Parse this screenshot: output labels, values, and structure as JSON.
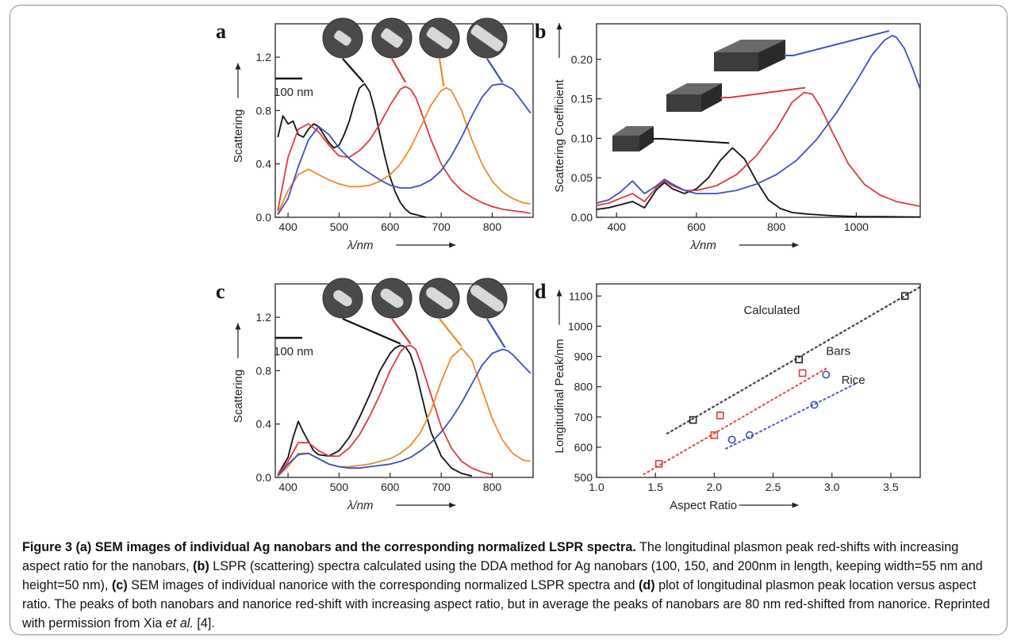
{
  "caption": {
    "title": "Figure 3 (a) SEM images of individual Ag nanobars and the corresponding normalized LSPR spectra.",
    "text1": " The longitudinal plasmon peak red-shifts with increasing aspect ratio for the nanobars, ",
    "b_label": "(b)",
    "text2": " LSPR (scattering) spectra calculated using the DDA method for Ag nanobars (100, 150, and 200nm in length, keeping width=55 nm and height=50 nm), ",
    "c_label": "(c)",
    "text3": " SEM images of individual nanorice with the corresponding normalized LSPR spectra and ",
    "d_label": "(d)",
    "text4": " plot of longitudinal plasmon peak location versus aspect ratio. The peaks of both nanobars and nanorice red-shift with increasing aspect ratio, but in average the peaks of nanobars are 80 nm red-shifted from nanorice. Reprinted with permission from Xia ",
    "etal": "et al.",
    "text5": " [4]."
  },
  "chart_data": [
    {
      "panel": "a",
      "type": "line",
      "xlabel": "λ/nm",
      "ylabel": "Scattering",
      "xlim": [
        375,
        880
      ],
      "ylim": [
        0,
        1.45
      ],
      "xticks": [
        "400",
        "500",
        "600",
        "700",
        "800"
      ],
      "yticks": [
        "0.0",
        "0.4",
        "0.8",
        "1.2"
      ],
      "scale_bar_label": "100 nm",
      "series": [
        {
          "color": "#111111",
          "x": [
            380,
            390,
            400,
            410,
            420,
            430,
            440,
            450,
            460,
            470,
            480,
            490,
            500,
            510,
            520,
            530,
            540,
            550,
            560,
            570,
            580,
            590,
            600,
            610,
            620,
            630,
            640,
            650,
            660,
            670
          ],
          "y": [
            0.6,
            0.76,
            0.7,
            0.72,
            0.62,
            0.6,
            0.66,
            0.7,
            0.68,
            0.62,
            0.56,
            0.52,
            0.54,
            0.62,
            0.72,
            0.86,
            0.97,
            1.0,
            0.94,
            0.8,
            0.62,
            0.45,
            0.3,
            0.19,
            0.11,
            0.06,
            0.03,
            0.02,
            0.01,
            0.0
          ]
        },
        {
          "color": "#e03a3a",
          "x": [
            380,
            400,
            420,
            440,
            460,
            480,
            500,
            520,
            540,
            560,
            580,
            600,
            620,
            630,
            640,
            650,
            660,
            680,
            700,
            720,
            740,
            760,
            780,
            800,
            820,
            840,
            860,
            875
          ],
          "y": [
            0.05,
            0.45,
            0.66,
            0.7,
            0.64,
            0.54,
            0.46,
            0.45,
            0.5,
            0.58,
            0.7,
            0.84,
            0.96,
            0.98,
            0.96,
            0.9,
            0.8,
            0.58,
            0.4,
            0.28,
            0.2,
            0.15,
            0.11,
            0.08,
            0.06,
            0.05,
            0.04,
            0.03
          ]
        },
        {
          "color": "#f08a28",
          "x": [
            380,
            400,
            420,
            440,
            460,
            480,
            500,
            520,
            540,
            560,
            580,
            600,
            620,
            640,
            660,
            680,
            700,
            710,
            720,
            740,
            760,
            780,
            800,
            820,
            840,
            860,
            875
          ],
          "y": [
            0.03,
            0.2,
            0.32,
            0.36,
            0.32,
            0.28,
            0.25,
            0.23,
            0.23,
            0.24,
            0.27,
            0.32,
            0.4,
            0.52,
            0.68,
            0.84,
            0.95,
            0.97,
            0.95,
            0.8,
            0.58,
            0.4,
            0.27,
            0.19,
            0.14,
            0.11,
            0.1
          ]
        },
        {
          "color": "#3a50c0",
          "x": [
            380,
            400,
            420,
            440,
            460,
            480,
            500,
            520,
            540,
            560,
            580,
            600,
            620,
            640,
            660,
            680,
            700,
            720,
            740,
            760,
            780,
            800,
            820,
            840,
            860,
            875
          ],
          "y": [
            0.02,
            0.14,
            0.38,
            0.58,
            0.68,
            0.62,
            0.52,
            0.44,
            0.38,
            0.33,
            0.28,
            0.24,
            0.22,
            0.22,
            0.24,
            0.28,
            0.35,
            0.46,
            0.6,
            0.76,
            0.9,
            0.99,
            1.0,
            0.96,
            0.86,
            0.78
          ]
        }
      ]
    },
    {
      "panel": "b",
      "type": "line",
      "xlabel": "λ/nm",
      "ylabel": "Scattering Coefficient",
      "xlim": [
        350,
        1160
      ],
      "ylim": [
        0,
        0.245
      ],
      "xticks": [
        "400",
        "600",
        "800",
        "1000"
      ],
      "yticks": [
        "0.00",
        "0.05",
        "0.10",
        "0.15",
        "0.20"
      ],
      "series": [
        {
          "color": "#111111",
          "x": [
            350,
            380,
            410,
            440,
            470,
            500,
            520,
            540,
            570,
            600,
            630,
            660,
            690,
            720,
            750,
            780,
            810,
            840,
            880,
            940,
            1000,
            1060,
            1120,
            1160
          ],
          "y": [
            0.01,
            0.012,
            0.016,
            0.02,
            0.012,
            0.035,
            0.044,
            0.036,
            0.03,
            0.036,
            0.05,
            0.072,
            0.088,
            0.074,
            0.046,
            0.022,
            0.011,
            0.006,
            0.004,
            0.002,
            0.001,
            0.0008,
            0.0005,
            0.0004
          ]
        },
        {
          "color": "#e03a3a",
          "x": [
            350,
            380,
            410,
            440,
            470,
            500,
            520,
            540,
            570,
            600,
            650,
            700,
            750,
            800,
            840,
            870,
            890,
            910,
            940,
            980,
            1020,
            1060,
            1100,
            1140,
            1160
          ],
          "y": [
            0.015,
            0.018,
            0.024,
            0.03,
            0.02,
            0.038,
            0.046,
            0.04,
            0.034,
            0.034,
            0.04,
            0.054,
            0.078,
            0.112,
            0.146,
            0.158,
            0.156,
            0.14,
            0.108,
            0.068,
            0.042,
            0.028,
            0.02,
            0.016,
            0.014
          ]
        },
        {
          "color": "#3a50c0",
          "x": [
            350,
            380,
            410,
            440,
            470,
            500,
            520,
            540,
            570,
            600,
            650,
            700,
            750,
            800,
            850,
            900,
            950,
            1000,
            1040,
            1070,
            1090,
            1100,
            1120,
            1140,
            1160
          ],
          "y": [
            0.018,
            0.022,
            0.032,
            0.046,
            0.03,
            0.04,
            0.048,
            0.042,
            0.034,
            0.03,
            0.03,
            0.034,
            0.042,
            0.054,
            0.072,
            0.098,
            0.132,
            0.172,
            0.206,
            0.224,
            0.23,
            0.228,
            0.214,
            0.19,
            0.162
          ]
        }
      ]
    },
    {
      "panel": "c",
      "type": "line",
      "xlabel": "λ/nm",
      "ylabel": "Scattering",
      "xlim": [
        375,
        880
      ],
      "ylim": [
        0,
        1.45
      ],
      "xticks": [
        "400",
        "500",
        "600",
        "700",
        "800"
      ],
      "yticks": [
        "0.0",
        "0.4",
        "0.8",
        "1.2"
      ],
      "scale_bar_label": "100 nm",
      "series": [
        {
          "color": "#111111",
          "x": [
            380,
            400,
            410,
            420,
            430,
            440,
            450,
            460,
            480,
            500,
            520,
            540,
            560,
            580,
            600,
            610,
            620,
            630,
            640,
            650,
            660,
            670,
            680,
            700,
            720,
            740,
            760
          ],
          "y": [
            0.02,
            0.15,
            0.3,
            0.42,
            0.34,
            0.27,
            0.2,
            0.17,
            0.16,
            0.2,
            0.3,
            0.45,
            0.62,
            0.8,
            0.93,
            0.97,
            0.99,
            0.98,
            0.92,
            0.8,
            0.64,
            0.48,
            0.34,
            0.16,
            0.07,
            0.03,
            0.01
          ]
        },
        {
          "color": "#e03a3a",
          "x": [
            380,
            400,
            420,
            440,
            460,
            480,
            500,
            520,
            540,
            560,
            580,
            600,
            620,
            630,
            640,
            650,
            660,
            680,
            700,
            720,
            740,
            760,
            780,
            800
          ],
          "y": [
            0.02,
            0.12,
            0.26,
            0.26,
            0.2,
            0.16,
            0.16,
            0.22,
            0.32,
            0.46,
            0.62,
            0.8,
            0.94,
            0.98,
            0.99,
            0.96,
            0.86,
            0.62,
            0.38,
            0.22,
            0.12,
            0.07,
            0.04,
            0.02
          ]
        },
        {
          "color": "#f08a28",
          "x": [
            380,
            400,
            420,
            440,
            460,
            480,
            500,
            520,
            540,
            560,
            580,
            600,
            620,
            640,
            660,
            680,
            700,
            720,
            740,
            760,
            780,
            800,
            820,
            840,
            860,
            875
          ],
          "y": [
            0.01,
            0.08,
            0.18,
            0.18,
            0.14,
            0.1,
            0.08,
            0.08,
            0.09,
            0.1,
            0.12,
            0.14,
            0.18,
            0.24,
            0.34,
            0.5,
            0.72,
            0.9,
            0.97,
            0.88,
            0.66,
            0.44,
            0.28,
            0.18,
            0.13,
            0.12
          ]
        },
        {
          "color": "#3a50c0",
          "x": [
            380,
            400,
            420,
            440,
            460,
            480,
            500,
            520,
            540,
            560,
            580,
            600,
            620,
            640,
            660,
            680,
            700,
            720,
            740,
            760,
            780,
            800,
            820,
            830,
            840,
            860,
            875
          ],
          "y": [
            0.01,
            0.1,
            0.17,
            0.18,
            0.14,
            0.1,
            0.08,
            0.07,
            0.07,
            0.08,
            0.09,
            0.1,
            0.12,
            0.15,
            0.2,
            0.26,
            0.34,
            0.44,
            0.56,
            0.7,
            0.84,
            0.93,
            0.96,
            0.95,
            0.92,
            0.84,
            0.78
          ]
        }
      ]
    },
    {
      "panel": "d",
      "type": "scatter",
      "xlabel": "Aspect Ratio",
      "ylabel": "Longitudinal Peak/nm",
      "xlim": [
        1.0,
        3.75
      ],
      "ylim": [
        500,
        1140
      ],
      "xticks": [
        "1.0",
        "1.5",
        "2.0",
        "2.5",
        "3.0",
        "3.5"
      ],
      "yticks": [
        "500",
        "600",
        "700",
        "800",
        "900",
        "1000",
        "1100"
      ],
      "series": [
        {
          "name": "Calculated",
          "color": "#222222",
          "marker": "square",
          "x": [
            1.82,
            2.72,
            3.62
          ],
          "y": [
            690,
            890,
            1100
          ],
          "fit": [
            [
              1.6,
              645
            ],
            [
              3.75,
              1130
            ]
          ]
        },
        {
          "name": "Bars",
          "color": "#e03a3a",
          "marker": "square",
          "x": [
            1.53,
            2.0,
            2.05,
            2.75
          ],
          "y": [
            545,
            640,
            705,
            845
          ],
          "fit": [
            [
              1.4,
              510
            ],
            [
              2.95,
              860
            ]
          ]
        },
        {
          "name": "Rice",
          "color": "#3a50c0",
          "marker": "circle",
          "x": [
            2.15,
            2.3,
            2.85,
            2.95
          ],
          "y": [
            625,
            640,
            740,
            840
          ],
          "fit": [
            [
              2.1,
              595
            ],
            [
              3.2,
              810
            ]
          ]
        }
      ]
    }
  ]
}
